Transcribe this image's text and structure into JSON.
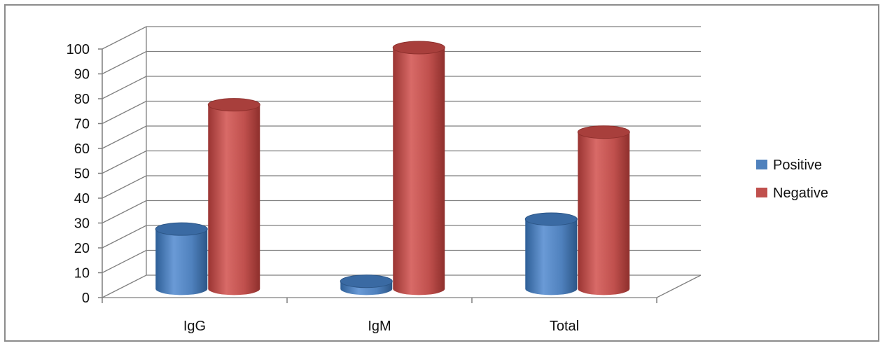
{
  "chart_data": {
    "type": "bar",
    "style": "3d-cylinder",
    "categories": [
      "IgG",
      "IgM",
      "Total"
    ],
    "series": [
      {
        "name": "Positive",
        "values": [
          24,
          3,
          28
        ],
        "color": "#4f81bd"
      },
      {
        "name": "Negative",
        "values": [
          74,
          97,
          63
        ],
        "color": "#c0504d"
      }
    ],
    "ylim": [
      0,
      100
    ],
    "yticks": [
      "0",
      "10",
      "20",
      "30",
      "40",
      "50",
      "60",
      "70",
      "80",
      "90",
      "100"
    ],
    "grid": true,
    "legend": "right",
    "title": "",
    "xlabel": "",
    "ylabel": ""
  }
}
